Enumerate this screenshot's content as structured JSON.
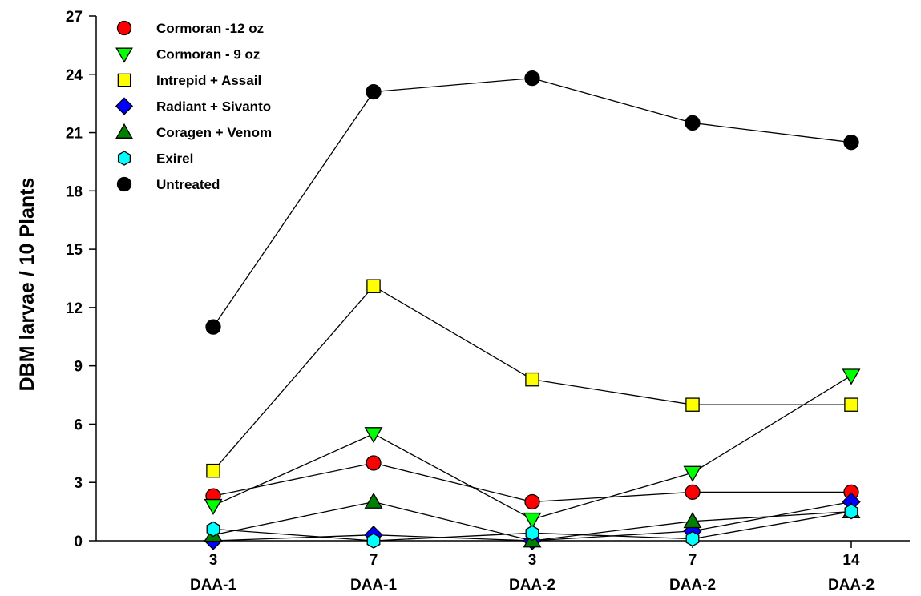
{
  "chart_data": {
    "type": "line",
    "title": "",
    "ylabel": "DBM larvae / 10 Plants",
    "xlabel": "",
    "ylim": [
      0,
      27
    ],
    "yticks": [
      0,
      3,
      6,
      9,
      12,
      15,
      18,
      21,
      24,
      27
    ],
    "categories": [
      {
        "top": "3",
        "bottom": "DAA-1"
      },
      {
        "top": "7",
        "bottom": "DAA-1"
      },
      {
        "top": "3",
        "bottom": "DAA-2"
      },
      {
        "top": "7",
        "bottom": "DAA-2"
      },
      {
        "top": "14",
        "bottom": "DAA-2"
      }
    ],
    "grid": false,
    "legend_position": "top-left",
    "series": [
      {
        "name": "Cormoran -12 oz",
        "marker": "circle",
        "color": "#ff0000",
        "values": [
          2.3,
          4.0,
          2.0,
          2.5,
          2.5
        ]
      },
      {
        "name": "Cormoran - 9 oz",
        "marker": "triangle-down",
        "color": "#00ff00",
        "values": [
          1.8,
          5.5,
          1.1,
          3.5,
          8.5
        ]
      },
      {
        "name": "Intrepid + Assail",
        "marker": "square",
        "color": "#ffff00",
        "values": [
          3.6,
          13.1,
          8.3,
          7.0,
          7.0
        ]
      },
      {
        "name": "Radiant + Sivanto",
        "marker": "diamond",
        "color": "#0000ff",
        "values": [
          0.0,
          0.3,
          0.0,
          0.5,
          2.0
        ]
      },
      {
        "name": "Coragen + Venom",
        "marker": "triangle-up",
        "color": "#008000",
        "values": [
          0.3,
          2.0,
          0.0,
          1.0,
          1.5
        ]
      },
      {
        "name": "Exirel",
        "marker": "hexagon",
        "color": "#00ffff",
        "values": [
          0.6,
          0.0,
          0.4,
          0.1,
          1.5
        ]
      },
      {
        "name": "Untreated",
        "marker": "circle",
        "color": "#000000",
        "values": [
          11.0,
          23.1,
          23.8,
          21.5,
          20.5
        ]
      }
    ]
  }
}
